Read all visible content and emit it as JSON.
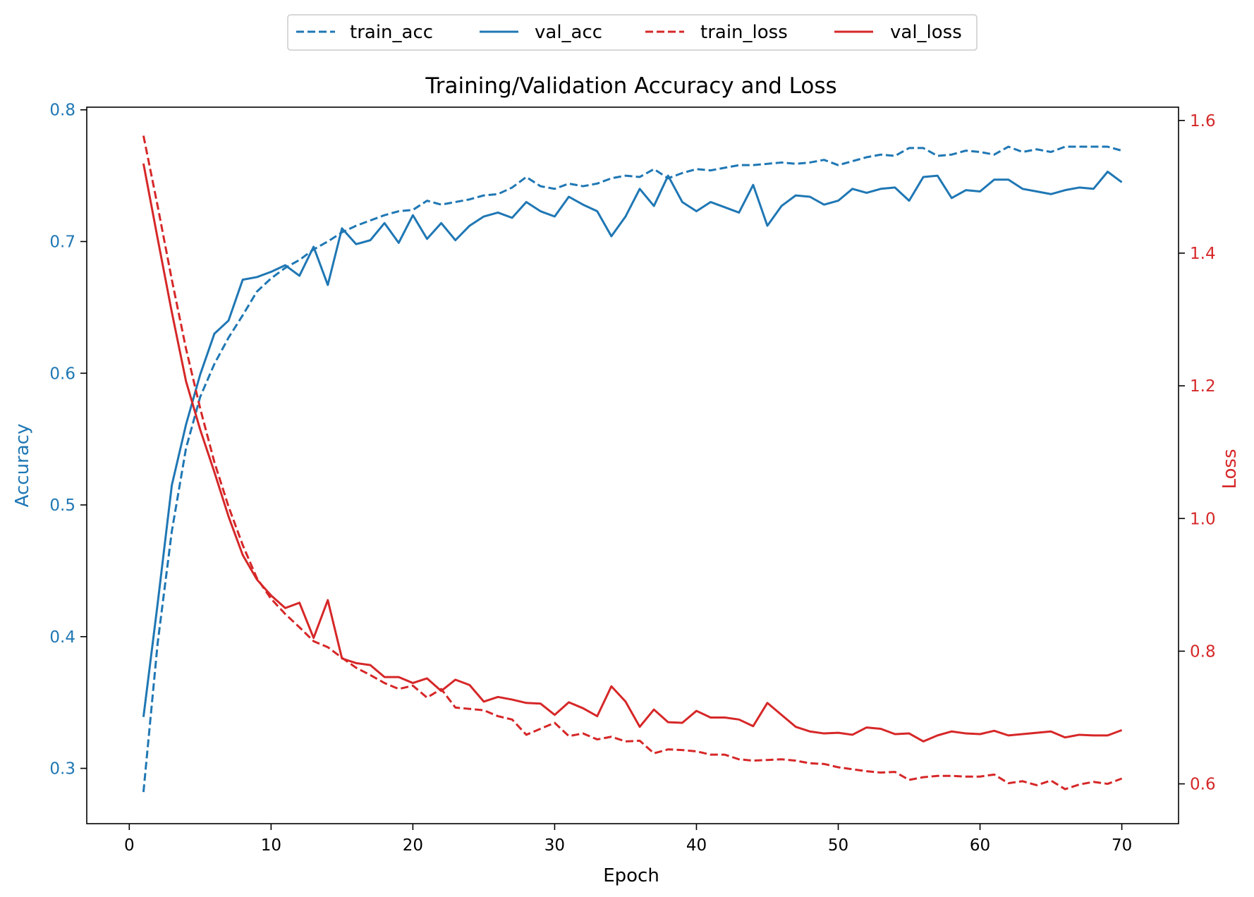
{
  "chart_data": {
    "type": "line",
    "title": "Training/Validation Accuracy and Loss",
    "xlabel": "Epoch",
    "ylabel_left": "Accuracy",
    "ylabel_right": "Loss",
    "xlim": [
      -3,
      74
    ],
    "ylim_left": [
      0.258,
      0.802
    ],
    "ylim_right": [
      0.54,
      1.62
    ],
    "x_ticks": [
      0,
      10,
      20,
      30,
      40,
      50,
      60,
      70
    ],
    "y_left_ticks": [
      0.3,
      0.4,
      0.5,
      0.6,
      0.7,
      0.8
    ],
    "y_right_ticks": [
      0.6,
      0.8,
      1.0,
      1.2,
      1.4,
      1.6
    ],
    "legend_position": "top-center",
    "grid": false,
    "colors": {
      "accuracy": "#1f77b4",
      "loss": "#d62728"
    },
    "x": [
      1,
      2,
      3,
      4,
      5,
      6,
      7,
      8,
      9,
      10,
      11,
      12,
      13,
      14,
      15,
      16,
      17,
      18,
      19,
      20,
      21,
      22,
      23,
      24,
      25,
      26,
      27,
      28,
      29,
      30,
      31,
      32,
      33,
      34,
      35,
      36,
      37,
      38,
      39,
      40,
      41,
      42,
      43,
      44,
      45,
      46,
      47,
      48,
      49,
      50,
      51,
      52,
      53,
      54,
      55,
      56,
      57,
      58,
      59,
      60,
      61,
      62,
      63,
      64,
      65,
      66,
      67,
      68,
      69,
      70
    ],
    "series": [
      {
        "name": "train_acc",
        "axis": "left",
        "style": "dashed",
        "color": "#1f77b4",
        "values": [
          0.282,
          0.395,
          0.48,
          0.543,
          0.582,
          0.607,
          0.627,
          0.644,
          0.662,
          0.672,
          0.68,
          0.686,
          0.694,
          0.7,
          0.707,
          0.712,
          0.716,
          0.72,
          0.723,
          0.724,
          0.731,
          0.728,
          0.73,
          0.732,
          0.735,
          0.736,
          0.741,
          0.749,
          0.742,
          0.74,
          0.744,
          0.742,
          0.744,
          0.748,
          0.75,
          0.749,
          0.755,
          0.748,
          0.752,
          0.755,
          0.754,
          0.756,
          0.758,
          0.758,
          0.759,
          0.76,
          0.759,
          0.76,
          0.762,
          0.758,
          0.761,
          0.764,
          0.766,
          0.765,
          0.771,
          0.771,
          0.765,
          0.766,
          0.769,
          0.768,
          0.766,
          0.772,
          0.768,
          0.77,
          0.768,
          0.772,
          0.772,
          0.772,
          0.772,
          0.769
        ]
      },
      {
        "name": "val_acc",
        "axis": "left",
        "style": "solid",
        "color": "#1f77b4",
        "values": [
          0.339,
          0.425,
          0.515,
          0.561,
          0.599,
          0.63,
          0.64,
          0.671,
          0.673,
          0.677,
          0.682,
          0.674,
          0.696,
          0.667,
          0.71,
          0.698,
          0.701,
          0.714,
          0.699,
          0.72,
          0.702,
          0.714,
          0.701,
          0.712,
          0.719,
          0.722,
          0.718,
          0.73,
          0.723,
          0.719,
          0.734,
          0.728,
          0.723,
          0.704,
          0.719,
          0.74,
          0.727,
          0.75,
          0.73,
          0.723,
          0.73,
          0.726,
          0.722,
          0.743,
          0.712,
          0.727,
          0.735,
          0.734,
          0.728,
          0.731,
          0.74,
          0.737,
          0.74,
          0.741,
          0.731,
          0.749,
          0.75,
          0.733,
          0.739,
          0.738,
          0.747,
          0.747,
          0.74,
          0.738,
          0.736,
          0.739,
          0.741,
          0.74,
          0.753,
          0.745
        ]
      },
      {
        "name": "train_loss",
        "axis": "right",
        "style": "dashed",
        "color": "#d62728",
        "values": [
          1.577,
          1.471,
          1.36,
          1.256,
          1.166,
          1.085,
          1.018,
          0.96,
          0.91,
          0.879,
          0.856,
          0.836,
          0.815,
          0.806,
          0.79,
          0.775,
          0.764,
          0.752,
          0.743,
          0.748,
          0.73,
          0.743,
          0.715,
          0.713,
          0.711,
          0.702,
          0.697,
          0.674,
          0.683,
          0.692,
          0.672,
          0.676,
          0.667,
          0.671,
          0.664,
          0.665,
          0.646,
          0.652,
          0.651,
          0.649,
          0.644,
          0.644,
          0.637,
          0.635,
          0.636,
          0.637,
          0.635,
          0.631,
          0.63,
          0.625,
          0.622,
          0.619,
          0.617,
          0.618,
          0.606,
          0.61,
          0.612,
          0.612,
          0.611,
          0.611,
          0.614,
          0.601,
          0.604,
          0.598,
          0.605,
          0.592,
          0.599,
          0.603,
          0.6,
          0.608
        ]
      },
      {
        "name": "val_loss",
        "axis": "right",
        "style": "solid",
        "color": "#d62728",
        "values": [
          1.535,
          1.422,
          1.311,
          1.207,
          1.134,
          1.07,
          1.003,
          0.945,
          0.908,
          0.884,
          0.865,
          0.873,
          0.82,
          0.877,
          0.789,
          0.782,
          0.779,
          0.761,
          0.761,
          0.752,
          0.759,
          0.74,
          0.757,
          0.749,
          0.724,
          0.731,
          0.727,
          0.722,
          0.721,
          0.704,
          0.723,
          0.714,
          0.702,
          0.747,
          0.724,
          0.686,
          0.712,
          0.693,
          0.692,
          0.71,
          0.7,
          0.7,
          0.697,
          0.687,
          0.722,
          0.704,
          0.686,
          0.679,
          0.676,
          0.677,
          0.674,
          0.685,
          0.683,
          0.675,
          0.676,
          0.664,
          0.673,
          0.679,
          0.676,
          0.675,
          0.68,
          0.673,
          0.675,
          0.677,
          0.679,
          0.67,
          0.674,
          0.673,
          0.673,
          0.681
        ]
      }
    ]
  }
}
